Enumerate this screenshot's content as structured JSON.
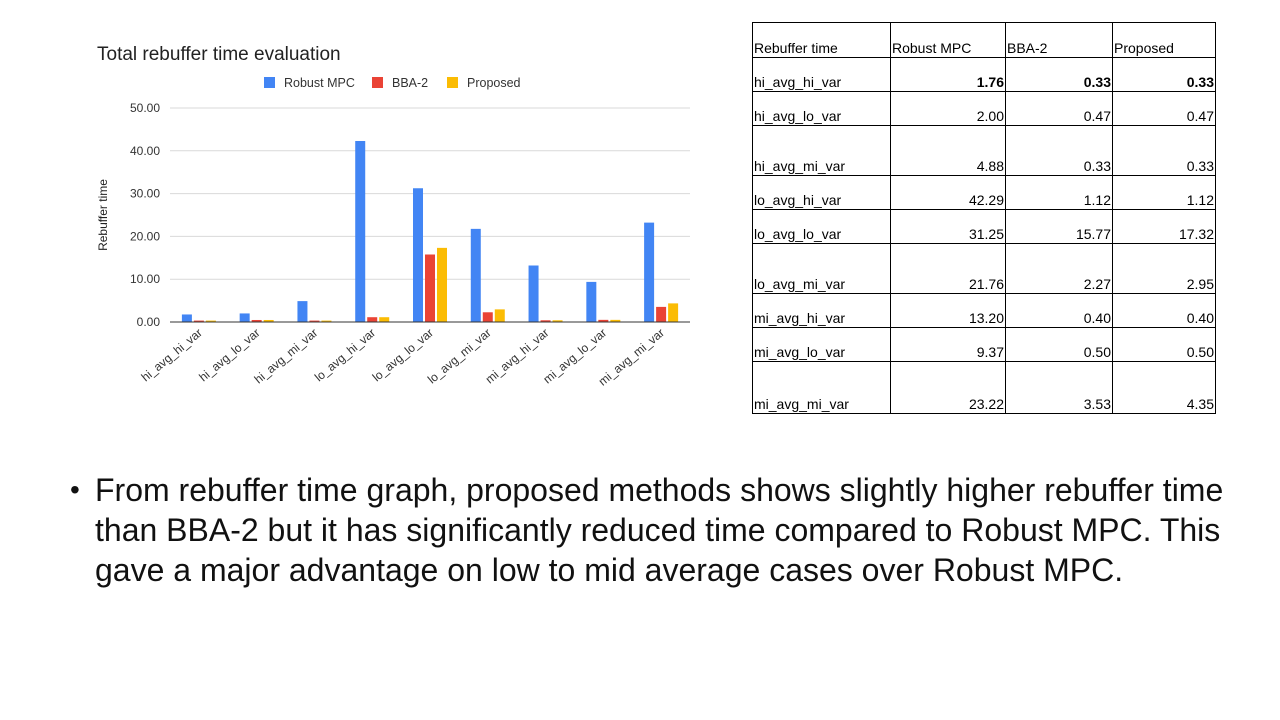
{
  "chart_data": {
    "type": "bar",
    "title": "Total rebuffer time evaluation",
    "ylabel": "Rebuffer time",
    "xlabel": "",
    "ylim": [
      0,
      50
    ],
    "yticks": [
      "0.00",
      "10.00",
      "20.00",
      "30.00",
      "40.00",
      "50.00"
    ],
    "grid": true,
    "legend_position": "top",
    "categories": [
      "hi_avg_hi_var",
      "hi_avg_lo_var",
      "hi_avg_mi_var",
      "lo_avg_hi_var",
      "lo_avg_lo_var",
      "lo_avg_mi_var",
      "mi_avg_hi_var",
      "mi_avg_lo_var",
      "mi_avg_mi_var"
    ],
    "series": [
      {
        "name": "Robust MPC",
        "color": "#4285f4",
        "values": [
          1.76,
          2.0,
          4.88,
          42.29,
          31.25,
          21.76,
          13.2,
          9.37,
          23.22
        ]
      },
      {
        "name": "BBA-2",
        "color": "#ea4335",
        "values": [
          0.33,
          0.47,
          0.33,
          1.12,
          15.77,
          2.27,
          0.4,
          0.5,
          3.53
        ]
      },
      {
        "name": "Proposed",
        "color": "#fbbc04",
        "values": [
          0.33,
          0.47,
          0.33,
          1.12,
          17.32,
          2.95,
          0.4,
          0.5,
          4.35
        ]
      }
    ]
  },
  "table": {
    "headers": [
      "Rebuffer time",
      "Robust MPC",
      "BBA-2",
      "Proposed"
    ],
    "rows": [
      {
        "label": "hi_avg_hi_var",
        "mpc": "1.76",
        "bba": "0.33",
        "proposed": "0.33"
      },
      {
        "label": "hi_avg_lo_var",
        "mpc": "2.00",
        "bba": "0.47",
        "proposed": "0.47"
      },
      {
        "label": "hi_avg_mi_var",
        "mpc": "4.88",
        "bba": "0.33",
        "proposed": "0.33"
      },
      {
        "label": "lo_avg_hi_var",
        "mpc": "42.29",
        "bba": "1.12",
        "proposed": "1.12"
      },
      {
        "label": "lo_avg_lo_var",
        "mpc": "31.25",
        "bba": "15.77",
        "proposed": "17.32"
      },
      {
        "label": "lo_avg_mi_var",
        "mpc": "21.76",
        "bba": "2.27",
        "proposed": "2.95"
      },
      {
        "label": "mi_avg_hi_var",
        "mpc": "13.20",
        "bba": "0.40",
        "proposed": "0.40"
      },
      {
        "label": "mi_avg_lo_var",
        "mpc": "9.37",
        "bba": "0.50",
        "proposed": "0.50"
      },
      {
        "label": "mi_avg_mi_var",
        "mpc": "23.22",
        "bba": "3.53",
        "proposed": "4.35"
      }
    ]
  },
  "bullet": {
    "symbol": "•",
    "text": "From rebuffer time graph, proposed methods shows slightly higher rebuffer time than BBA-2 but it has significantly reduced time compared to Robust MPC. This gave a major advantage on low to mid average cases over Robust MPC."
  }
}
